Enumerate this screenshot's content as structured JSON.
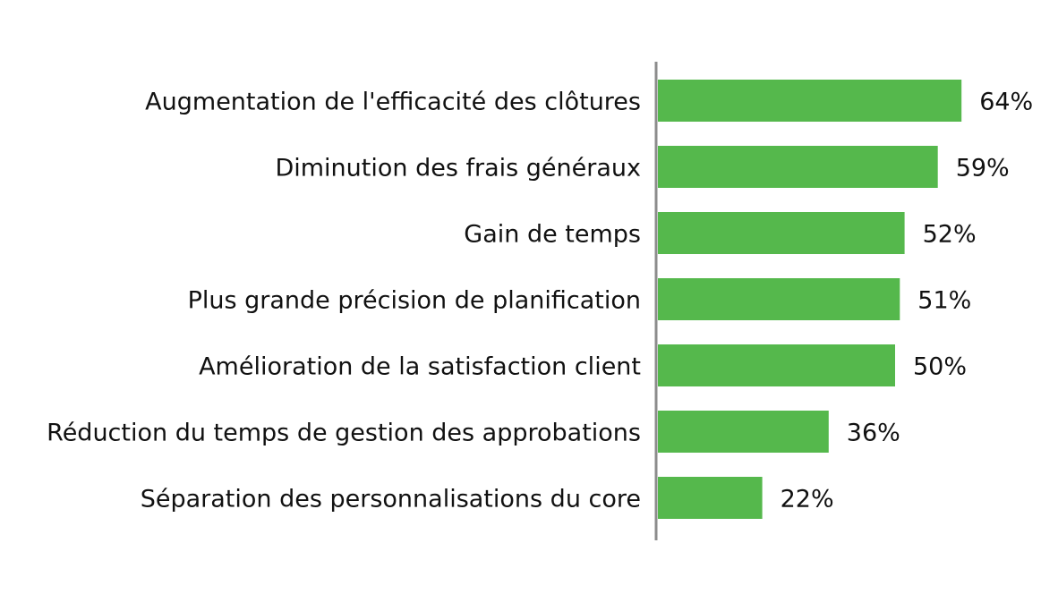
{
  "chart_data": {
    "type": "bar",
    "orientation": "horizontal",
    "categories": [
      "Augmentation de l'efficacité des clôtures",
      "Diminution des frais généraux",
      "Gain de temps",
      "Plus grande précision de planification",
      "Amélioration de la satisfaction client",
      "Réduction du temps de gestion des approbations",
      "Séparation des personnalisations du core"
    ],
    "values": [
      64,
      59,
      52,
      51,
      50,
      36,
      22
    ],
    "data_labels": [
      "64%",
      "59%",
      "52%",
      "51%",
      "50%",
      "36%",
      "22%"
    ],
    "unit": "%",
    "title": "",
    "xlabel": "",
    "ylabel": "",
    "xlim": [
      0,
      70
    ],
    "grid": false,
    "legend": "none",
    "colors": {
      "bar": "#55b84c",
      "axis": "#8c8c8c"
    }
  }
}
